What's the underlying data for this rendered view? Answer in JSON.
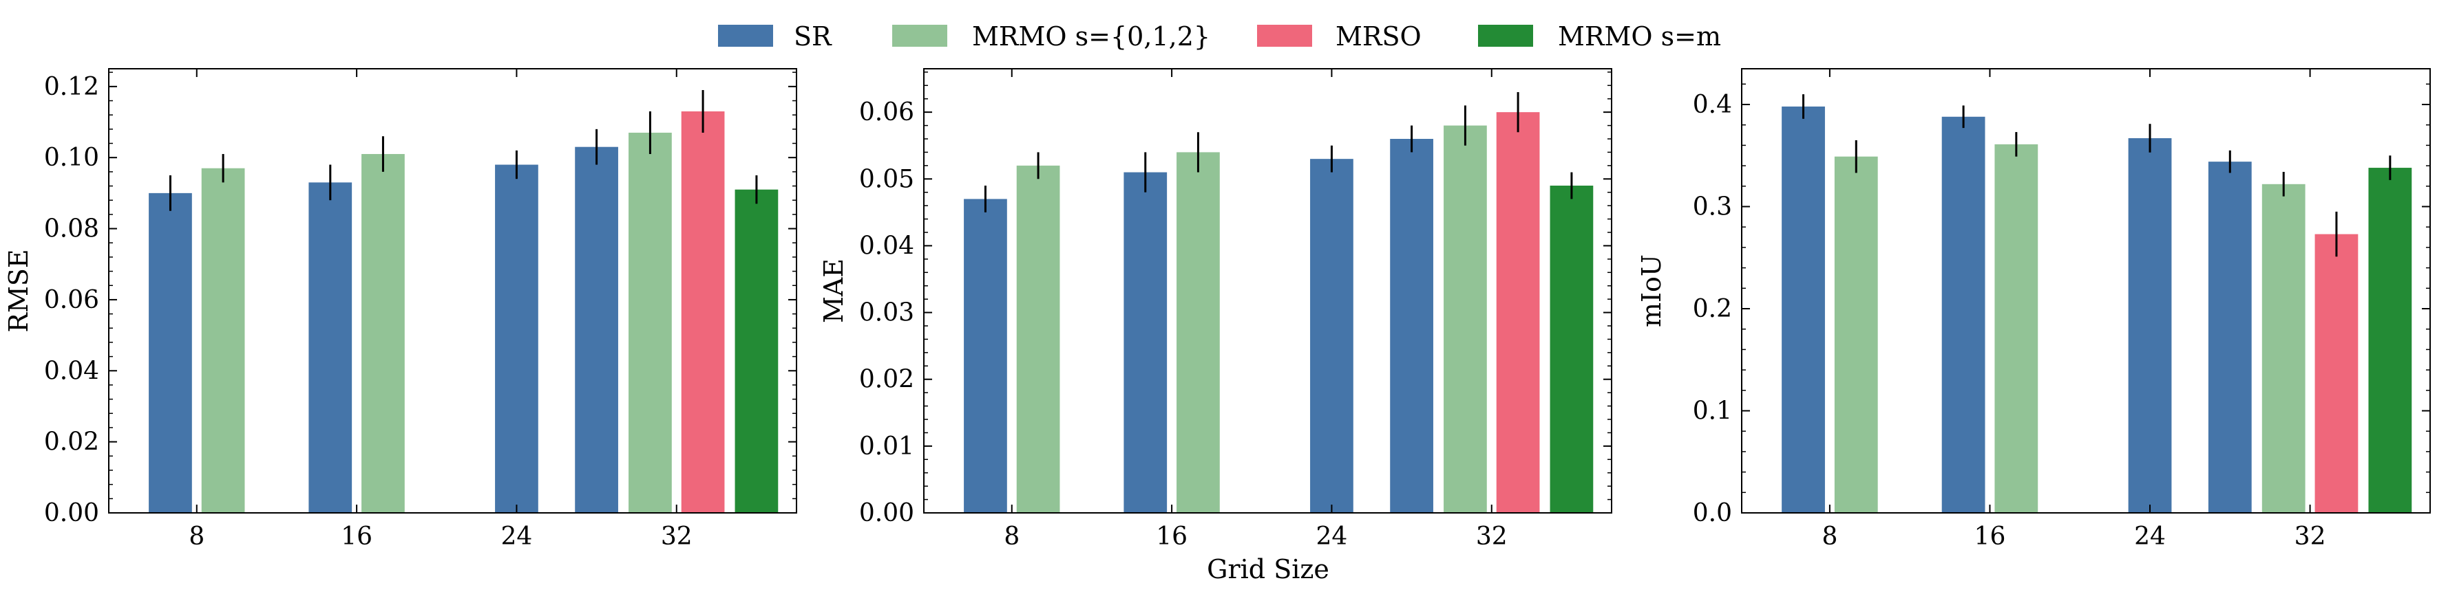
{
  "legend": [
    {
      "label": "SR",
      "color": "#4575a9"
    },
    {
      "label": "MRMO s={0,1,2}",
      "color": "#92c396"
    },
    {
      "label": "MRSO",
      "color": "#ef677b"
    },
    {
      "label": "MRMO s=m",
      "color": "#238b35"
    }
  ],
  "xlabel": "Grid Size",
  "chart_data": [
    {
      "type": "bar",
      "categories": [
        "8",
        "16",
        "24",
        "32"
      ],
      "ylabel": "RMSE",
      "ylim": [
        0,
        0.125
      ],
      "yticks": [
        "0.00",
        "0.02",
        "0.04",
        "0.06",
        "0.08",
        "0.10",
        "0.12"
      ],
      "series": [
        {
          "name": "SR",
          "values": [
            0.09,
            0.093,
            0.098,
            0.103
          ],
          "errors": [
            0.005,
            0.005,
            0.004,
            0.005
          ]
        },
        {
          "name": "MRMO s={0,1,2}",
          "values": [
            0.097,
            0.101,
            null,
            0.107
          ],
          "errors": [
            0.004,
            0.005,
            null,
            0.006
          ]
        },
        {
          "name": "MRSO",
          "values": [
            null,
            null,
            null,
            0.113
          ],
          "errors": [
            null,
            null,
            null,
            0.006
          ]
        },
        {
          "name": "MRMO s=m",
          "values": [
            null,
            null,
            null,
            0.091
          ],
          "errors": [
            null,
            null,
            null,
            0.004
          ]
        }
      ]
    },
    {
      "type": "bar",
      "categories": [
        "8",
        "16",
        "24",
        "32"
      ],
      "ylabel": "MAE",
      "ylim": [
        0,
        0.0665
      ],
      "yticks": [
        "0.00",
        "0.01",
        "0.02",
        "0.03",
        "0.04",
        "0.05",
        "0.06"
      ],
      "series": [
        {
          "name": "SR",
          "values": [
            0.047,
            0.051,
            0.053,
            0.056
          ],
          "errors": [
            0.002,
            0.003,
            0.002,
            0.002
          ]
        },
        {
          "name": "MRMO s={0,1,2}",
          "values": [
            0.052,
            0.054,
            null,
            0.058
          ],
          "errors": [
            0.002,
            0.003,
            null,
            0.003
          ]
        },
        {
          "name": "MRSO",
          "values": [
            null,
            null,
            null,
            0.06
          ],
          "errors": [
            null,
            null,
            null,
            0.003
          ]
        },
        {
          "name": "MRMO s=m",
          "values": [
            null,
            null,
            null,
            0.049
          ],
          "errors": [
            null,
            null,
            null,
            0.002
          ]
        }
      ]
    },
    {
      "type": "bar",
      "categories": [
        "8",
        "16",
        "24",
        "32"
      ],
      "ylabel": "mIoU",
      "ylim": [
        0,
        0.435
      ],
      "yticks": [
        "0.0",
        "0.1",
        "0.2",
        "0.3",
        "0.4"
      ],
      "series": [
        {
          "name": "SR",
          "values": [
            0.398,
            0.388,
            0.367,
            0.344
          ],
          "errors": [
            0.012,
            0.011,
            0.014,
            0.011
          ]
        },
        {
          "name": "MRMO s={0,1,2}",
          "values": [
            0.349,
            0.361,
            null,
            0.322
          ],
          "errors": [
            0.016,
            0.012,
            null,
            0.012
          ]
        },
        {
          "name": "MRSO",
          "values": [
            null,
            null,
            null,
            0.273
          ],
          "errors": [
            null,
            null,
            null,
            0.022
          ]
        },
        {
          "name": "MRMO s=m",
          "values": [
            null,
            null,
            null,
            0.338
          ],
          "errors": [
            null,
            null,
            null,
            0.012
          ]
        }
      ]
    }
  ]
}
